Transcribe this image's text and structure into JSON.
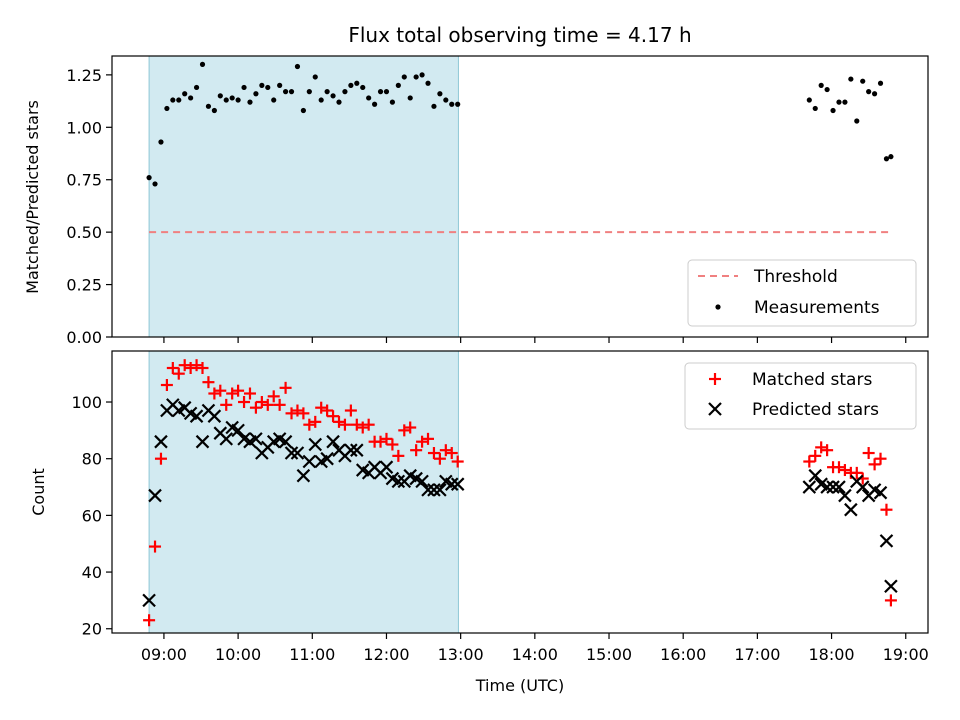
{
  "chart_data": [
    {
      "type": "scatter",
      "title": "Flux total observing time = 4.17 h",
      "xlabel": "",
      "ylabel": "Matched/Predicted stars",
      "xlim": [
        8.3,
        19.3
      ],
      "ylim": [
        0,
        1.34
      ],
      "yticks": [
        0.0,
        0.25,
        0.5,
        0.75,
        1.0,
        1.25
      ],
      "ytick_labels": [
        "0.00",
        "0.25",
        "0.50",
        "0.75",
        "1.00",
        "1.25"
      ],
      "shaded_region": [
        8.8,
        12.97
      ],
      "shade_color": "#add8e6",
      "threshold": {
        "value": 0.5,
        "x": [
          8.8,
          18.8
        ],
        "color": "#f08080",
        "label": "Threshold"
      },
      "legend": {
        "position": "lower-right",
        "entries": [
          "Threshold",
          "Measurements"
        ]
      },
      "series": [
        {
          "name": "Measurements",
          "color": "#000000",
          "x": [
            8.8,
            8.88,
            8.96,
            9.04,
            9.12,
            9.2,
            9.28,
            9.36,
            9.44,
            9.52,
            9.6,
            9.68,
            9.76,
            9.84,
            9.92,
            10.0,
            10.08,
            10.16,
            10.24,
            10.32,
            10.4,
            10.48,
            10.56,
            10.64,
            10.72,
            10.8,
            10.88,
            10.96,
            11.04,
            11.12,
            11.2,
            11.28,
            11.36,
            11.44,
            11.52,
            11.6,
            11.68,
            11.76,
            11.84,
            11.92,
            12.0,
            12.08,
            12.16,
            12.24,
            12.32,
            12.4,
            12.48,
            12.56,
            12.64,
            12.72,
            12.8,
            12.88,
            12.96,
            17.7,
            17.78,
            17.86,
            17.94,
            18.02,
            18.1,
            18.18,
            18.26,
            18.34,
            18.42,
            18.5,
            18.58,
            18.66,
            18.74,
            18.8
          ],
          "y": [
            0.76,
            0.73,
            0.93,
            1.09,
            1.13,
            1.13,
            1.16,
            1.14,
            1.19,
            1.3,
            1.1,
            1.08,
            1.15,
            1.13,
            1.14,
            1.13,
            1.19,
            1.12,
            1.16,
            1.2,
            1.19,
            1.13,
            1.2,
            1.17,
            1.17,
            1.29,
            1.08,
            1.17,
            1.24,
            1.13,
            1.17,
            1.15,
            1.12,
            1.17,
            1.2,
            1.21,
            1.19,
            1.14,
            1.11,
            1.17,
            1.17,
            1.12,
            1.2,
            1.24,
            1.14,
            1.24,
            1.25,
            1.21,
            1.1,
            1.16,
            1.13,
            1.11,
            1.11,
            1.13,
            1.09,
            1.2,
            1.18,
            1.08,
            1.12,
            1.12,
            1.23,
            1.03,
            1.22,
            1.17,
            1.16,
            1.21,
            0.85,
            0.86
          ]
        }
      ]
    },
    {
      "type": "scatter",
      "title": "",
      "xlabel": "Time (UTC)",
      "ylabel": "Count",
      "xlim": [
        8.3,
        19.3
      ],
      "ylim": [
        18.5,
        118
      ],
      "yticks": [
        20,
        40,
        60,
        80,
        100
      ],
      "ytick_labels": [
        "20",
        "40",
        "60",
        "80",
        "100"
      ],
      "xticks": [
        9,
        10,
        11,
        12,
        13,
        14,
        15,
        16,
        17,
        18,
        19
      ],
      "xtick_labels": [
        "09:00",
        "10:00",
        "11:00",
        "12:00",
        "13:00",
        "14:00",
        "15:00",
        "16:00",
        "17:00",
        "18:00",
        "19:00"
      ],
      "shaded_region": [
        8.8,
        12.97
      ],
      "legend": {
        "position": "top-right",
        "entries": [
          "Matched stars",
          "Predicted stars"
        ]
      },
      "series": [
        {
          "name": "Matched stars",
          "marker": "+",
          "color": "#ff0000",
          "x": [
            8.8,
            8.88,
            8.96,
            9.04,
            9.12,
            9.2,
            9.28,
            9.36,
            9.44,
            9.52,
            9.6,
            9.68,
            9.76,
            9.84,
            9.92,
            10.0,
            10.08,
            10.16,
            10.24,
            10.32,
            10.4,
            10.48,
            10.56,
            10.64,
            10.72,
            10.8,
            10.88,
            10.96,
            11.04,
            11.12,
            11.2,
            11.28,
            11.36,
            11.44,
            11.52,
            11.6,
            11.68,
            11.76,
            11.84,
            11.92,
            12.0,
            12.08,
            12.16,
            12.24,
            12.32,
            12.4,
            12.48,
            12.56,
            12.64,
            12.72,
            12.8,
            12.88,
            12.96,
            17.7,
            17.78,
            17.86,
            17.94,
            18.02,
            18.1,
            18.18,
            18.26,
            18.34,
            18.42,
            18.5,
            18.58,
            18.66,
            18.74,
            18.8
          ],
          "y": [
            23,
            49,
            80,
            106,
            112,
            110,
            113,
            112,
            113,
            112,
            107,
            103,
            104,
            99,
            103,
            104,
            100,
            103,
            98,
            100,
            99,
            102,
            99,
            105,
            96,
            97,
            96,
            92,
            93,
            98,
            97,
            95,
            93,
            92,
            97,
            92,
            91,
            92,
            86,
            86,
            87,
            85,
            81,
            90,
            91,
            83,
            86,
            87,
            82,
            80,
            83,
            82,
            79,
            79,
            81,
            84,
            83,
            77,
            77,
            76,
            75,
            75,
            73,
            82,
            78,
            80,
            62,
            30
          ]
        },
        {
          "name": "Predicted stars",
          "marker": "x",
          "color": "#000000",
          "x": [
            8.8,
            8.88,
            8.96,
            9.04,
            9.12,
            9.2,
            9.28,
            9.36,
            9.44,
            9.52,
            9.6,
            9.68,
            9.76,
            9.84,
            9.92,
            10.0,
            10.08,
            10.16,
            10.24,
            10.32,
            10.4,
            10.48,
            10.56,
            10.64,
            10.72,
            10.8,
            10.88,
            10.96,
            11.04,
            11.12,
            11.2,
            11.28,
            11.36,
            11.44,
            11.52,
            11.6,
            11.68,
            11.76,
            11.84,
            11.92,
            12.0,
            12.08,
            12.16,
            12.24,
            12.32,
            12.4,
            12.48,
            12.56,
            12.64,
            12.72,
            12.8,
            12.88,
            12.96,
            17.7,
            17.78,
            17.86,
            17.94,
            18.02,
            18.1,
            18.18,
            18.26,
            18.34,
            18.42,
            18.5,
            18.58,
            18.66,
            18.74,
            18.8
          ],
          "y": [
            30,
            67,
            86,
            97,
            99,
            97,
            98,
            96,
            95,
            86,
            97,
            95,
            89,
            87,
            91,
            90,
            87,
            86,
            87,
            82,
            84,
            86,
            87,
            86,
            82,
            82,
            74,
            79,
            85,
            79,
            80,
            86,
            83,
            81,
            83,
            83,
            76,
            75,
            77,
            75,
            77,
            73,
            72,
            72,
            74,
            73,
            72,
            69,
            69,
            69,
            72,
            71,
            71,
            70,
            74,
            71,
            70,
            70,
            70,
            67,
            62,
            72,
            70,
            67,
            69,
            68,
            51,
            35
          ]
        }
      ]
    }
  ]
}
